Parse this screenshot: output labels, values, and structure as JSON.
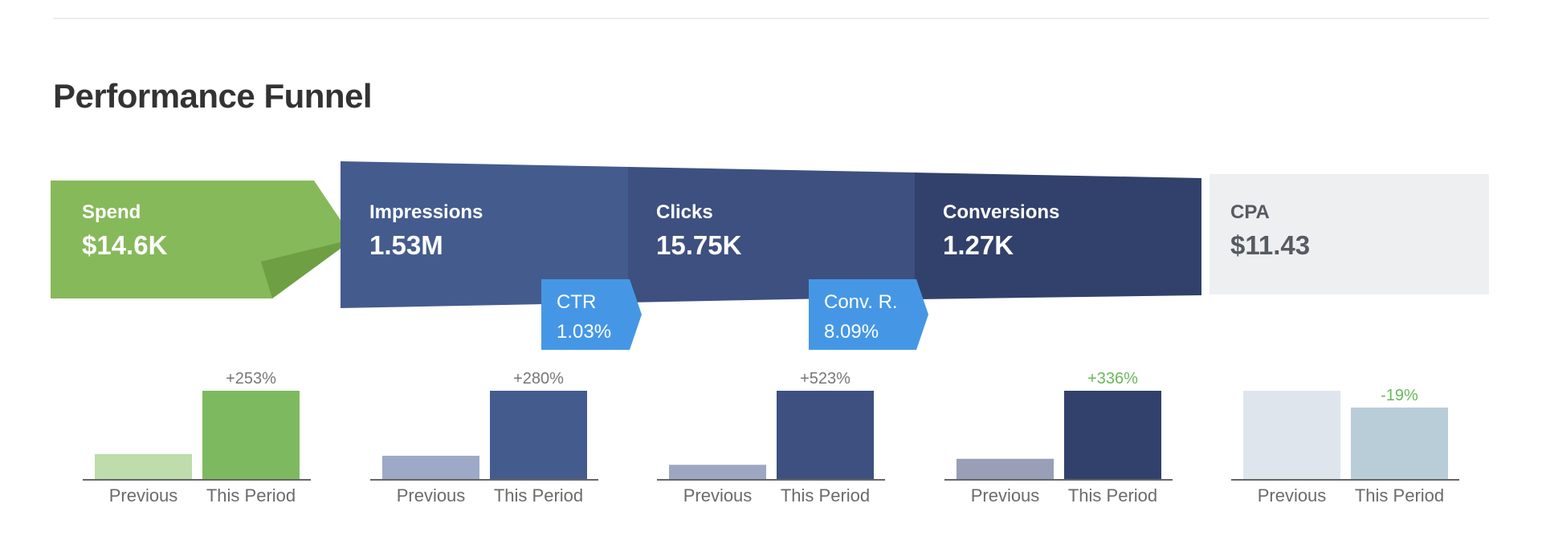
{
  "title": "Performance Funnel",
  "stages": [
    {
      "label": "Spend",
      "value": "$14.6K",
      "color": "#86b95a",
      "fold_color": "#6e9f43"
    },
    {
      "label": "Impressions",
      "value": "1.53M",
      "color": "#445b8e"
    },
    {
      "label": "Clicks",
      "value": "15.75K",
      "color": "#3d5080"
    },
    {
      "label": "Conversions",
      "value": "1.27K",
      "color": "#32416b"
    },
    {
      "label": "CPA",
      "value": "$11.43",
      "color": "#eeeff1"
    }
  ],
  "rates": [
    {
      "label": "CTR",
      "value": "1.03%",
      "color": "#4597e6"
    },
    {
      "label": "Conv. R.",
      "value": "8.09%",
      "color": "#4597e6"
    }
  ],
  "chart_data": [
    {
      "type": "bar",
      "metric": "Spend",
      "categories": [
        "Previous",
        "This Period"
      ],
      "values": [
        0.283,
        1.0
      ],
      "change": "+253%",
      "change_color": "#777777",
      "colors": [
        "#bedcac",
        "#7dba5f"
      ]
    },
    {
      "type": "bar",
      "metric": "Impressions",
      "categories": [
        "Previous",
        "This Period"
      ],
      "values": [
        0.263,
        1.0
      ],
      "change": "+280%",
      "change_color": "#777777",
      "colors": [
        "#9ea9c7",
        "#445b8e"
      ]
    },
    {
      "type": "bar",
      "metric": "Clicks",
      "categories": [
        "Previous",
        "This Period"
      ],
      "values": [
        0.161,
        1.0
      ],
      "change": "+523%",
      "change_color": "#777777",
      "colors": [
        "#9ea7c1",
        "#3d5080"
      ]
    },
    {
      "type": "bar",
      "metric": "Conversions",
      "categories": [
        "Previous",
        "This Period"
      ],
      "values": [
        0.229,
        1.0
      ],
      "change": "+336%",
      "change_color": "#6ab85a",
      "colors": [
        "#989fb6",
        "#32416b"
      ]
    },
    {
      "type": "bar",
      "metric": "CPA",
      "categories": [
        "Previous",
        "This Period"
      ],
      "values": [
        1.0,
        0.81
      ],
      "change": "-19%",
      "change_color": "#6ab85a",
      "colors": [
        "#dfe5ed",
        "#b9cdd8"
      ]
    }
  ]
}
